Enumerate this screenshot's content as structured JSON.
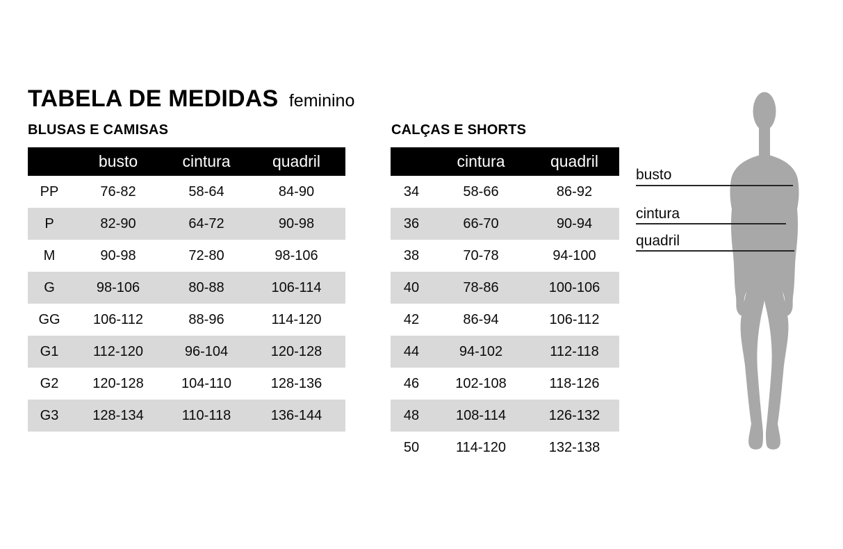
{
  "page": {
    "title": "TABELA DE MEDIDAS",
    "subtitle": "feminino"
  },
  "colors": {
    "header_bg": "#000000",
    "row_alt": "#d9d9d9",
    "silhouette": "#a8a8a8",
    "line": "#262626"
  },
  "tables": {
    "blusas": {
      "section_title": "BLUSAS E CAMISAS",
      "columns": [
        "",
        "busto",
        "cintura",
        "quadril"
      ],
      "rows": [
        [
          "PP",
          "76-82",
          "58-64",
          "84-90"
        ],
        [
          "P",
          "82-90",
          "64-72",
          "90-98"
        ],
        [
          "M",
          "90-98",
          "72-80",
          "98-106"
        ],
        [
          "G",
          "98-106",
          "80-88",
          "106-114"
        ],
        [
          "GG",
          "106-112",
          "88-96",
          "114-120"
        ],
        [
          "G1",
          "112-120",
          "96-104",
          "120-128"
        ],
        [
          "G2",
          "120-128",
          "104-110",
          "128-136"
        ],
        [
          "G3",
          "128-134",
          "110-118",
          "136-144"
        ]
      ]
    },
    "calcas": {
      "section_title": "CALÇAS E SHORTS",
      "columns": [
        "",
        "cintura",
        "quadril"
      ],
      "rows": [
        [
          "34",
          "58-66",
          "86-92"
        ],
        [
          "36",
          "66-70",
          "90-94"
        ],
        [
          "38",
          "70-78",
          "94-100"
        ],
        [
          "40",
          "78-86",
          "100-106"
        ],
        [
          "42",
          "86-94",
          "106-112"
        ],
        [
          "44",
          "94-102",
          "112-118"
        ],
        [
          "46",
          "102-108",
          "118-126"
        ],
        [
          "48",
          "108-114",
          "126-132"
        ],
        [
          "50",
          "114-120",
          "132-138"
        ]
      ]
    }
  },
  "figure": {
    "labels": [
      "busto",
      "cintura",
      "quadril"
    ]
  }
}
